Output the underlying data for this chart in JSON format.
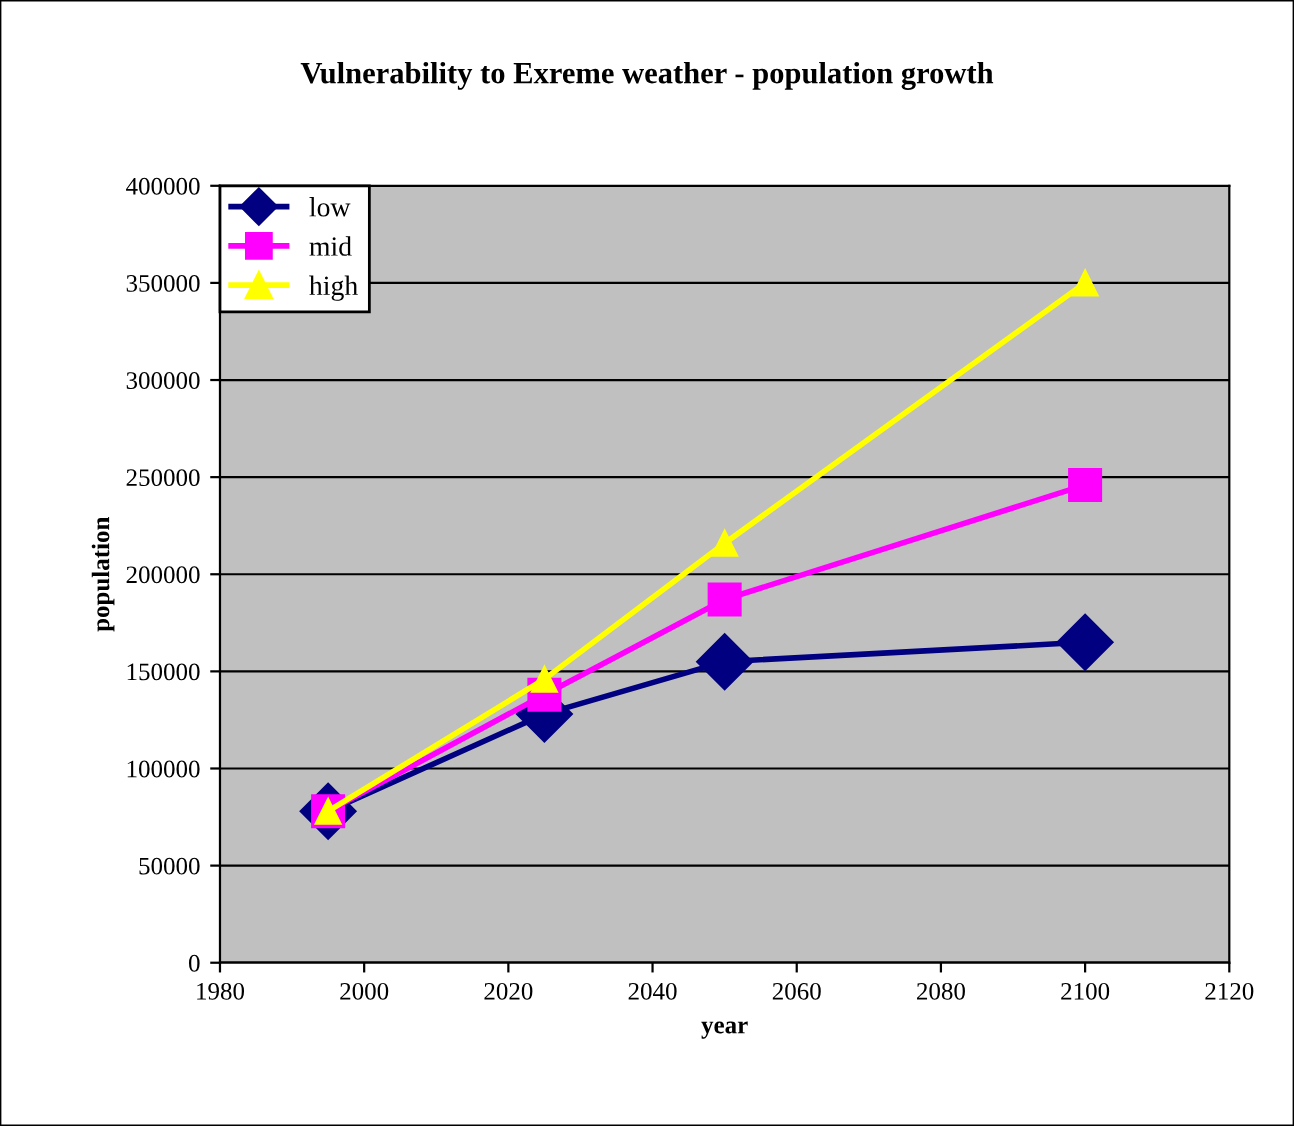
{
  "chart_data": {
    "type": "line",
    "title": "Vulnerability to Exreme weather - population growth",
    "xlabel": "year",
    "ylabel": "population",
    "x": [
      1995,
      2025,
      2050,
      2100
    ],
    "series": [
      {
        "name": "low",
        "color": "#000080",
        "values": [
          78000,
          128000,
          155000,
          165000
        ],
        "marker": "diamond"
      },
      {
        "name": "mid",
        "color": "#ff00ff",
        "values": [
          78000,
          138000,
          187000,
          246000
        ],
        "marker": "square"
      },
      {
        "name": "high",
        "color": "#ffff00",
        "values": [
          78000,
          146000,
          216000,
          350000
        ],
        "marker": "triangle"
      }
    ],
    "xlim": [
      1980,
      2120
    ],
    "xticks": [
      1980,
      2000,
      2020,
      2040,
      2060,
      2080,
      2100,
      2120
    ],
    "ylim": [
      0,
      400000
    ],
    "yticks": [
      0,
      50000,
      100000,
      150000,
      200000,
      250000,
      300000,
      350000,
      400000
    ],
    "grid": "y",
    "legend": "top left",
    "line_style": "solid"
  }
}
